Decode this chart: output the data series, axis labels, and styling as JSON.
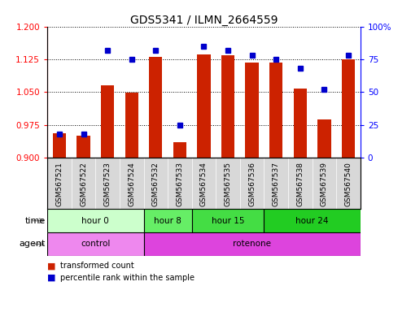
{
  "title": "GDS5341 / ILMN_2664559",
  "samples": [
    "GSM567521",
    "GSM567522",
    "GSM567523",
    "GSM567524",
    "GSM567532",
    "GSM567533",
    "GSM567534",
    "GSM567535",
    "GSM567536",
    "GSM567537",
    "GSM567538",
    "GSM567539",
    "GSM567540"
  ],
  "red_values": [
    0.955,
    0.95,
    1.065,
    1.048,
    1.13,
    0.935,
    1.137,
    1.135,
    1.117,
    1.118,
    1.058,
    0.988,
    1.125
  ],
  "blue_values": [
    18,
    18,
    82,
    75,
    82,
    25,
    85,
    82,
    78,
    75,
    68,
    52,
    78
  ],
  "ylim_left": [
    0.9,
    1.2
  ],
  "ylim_right": [
    0,
    100
  ],
  "yticks_left": [
    0.9,
    0.975,
    1.05,
    1.125,
    1.2
  ],
  "yticks_right": [
    0,
    25,
    50,
    75,
    100
  ],
  "bar_color": "#cc2200",
  "dot_color": "#0000cc",
  "time_groups": [
    {
      "label": "hour 0",
      "start": 0,
      "end": 4,
      "color": "#ccffcc"
    },
    {
      "label": "hour 8",
      "start": 4,
      "end": 6,
      "color": "#66ee66"
    },
    {
      "label": "hour 15",
      "start": 6,
      "end": 9,
      "color": "#44dd44"
    },
    {
      "label": "hour 24",
      "start": 9,
      "end": 13,
      "color": "#22cc22"
    }
  ],
  "agent_groups": [
    {
      "label": "control",
      "start": 0,
      "end": 4,
      "color": "#ee88ee"
    },
    {
      "label": "rotenone",
      "start": 4,
      "end": 13,
      "color": "#dd44dd"
    }
  ],
  "time_label": "time",
  "agent_label": "agent",
  "legend_items": [
    {
      "color": "#cc2200",
      "label": "transformed count"
    },
    {
      "color": "#0000cc",
      "label": "percentile rank within the sample"
    }
  ]
}
